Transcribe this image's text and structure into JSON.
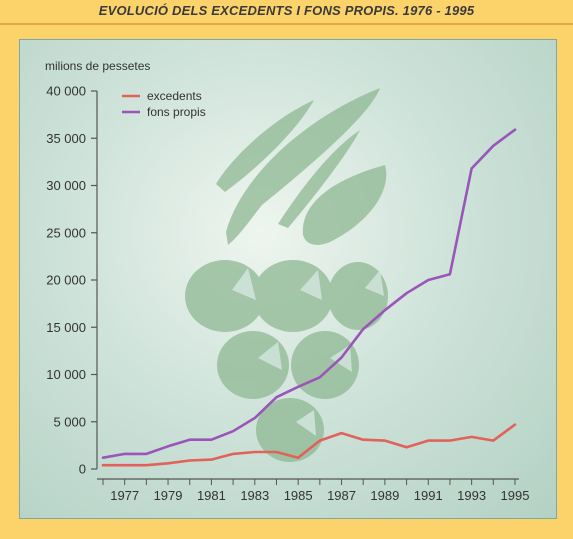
{
  "header": {
    "title": "EVOLUCIÓ DELS EXCEDENTS I FONS PROPIS. 1976 - 1995"
  },
  "colors": {
    "background": "#fbd36a",
    "panel": "#c7ddd3",
    "excedents": "#e0625a",
    "fons_propis": "#9a55b8",
    "axis": "#555555",
    "watermark": "#8fb893"
  },
  "chart_data": {
    "type": "line",
    "ylabel": "milions de pessetes",
    "xlabel": "",
    "x": [
      1976,
      1977,
      1978,
      1979,
      1980,
      1981,
      1982,
      1983,
      1984,
      1985,
      1986,
      1987,
      1988,
      1989,
      1990,
      1991,
      1992,
      1993,
      1994,
      1995
    ],
    "xticks": [
      "1977",
      "1979",
      "1981",
      "1983",
      "1985",
      "1987",
      "1989",
      "1991",
      "1993",
      "1995"
    ],
    "yticks": [
      "0",
      "5 000",
      "10 000",
      "15 000",
      "20 000",
      "25 000",
      "30 000",
      "35 000",
      "40 000"
    ],
    "ylim": [
      0,
      40000
    ],
    "xlim": [
      1976,
      1995
    ],
    "legend_position": "top-left",
    "grid": false,
    "series": [
      {
        "name": "excedents",
        "values": [
          400,
          400,
          400,
          600,
          900,
          1000,
          1600,
          1800,
          1800,
          1200,
          3000,
          3800,
          3100,
          3000,
          2300,
          3000,
          3000,
          3400,
          3000,
          4700
        ]
      },
      {
        "name": "fons propis",
        "values": [
          1200,
          1600,
          1600,
          2400,
          3100,
          3100,
          4000,
          5400,
          7600,
          8700,
          9700,
          11800,
          14800,
          16800,
          18600,
          20000,
          20600,
          31800,
          34200,
          35900
        ]
      }
    ]
  }
}
